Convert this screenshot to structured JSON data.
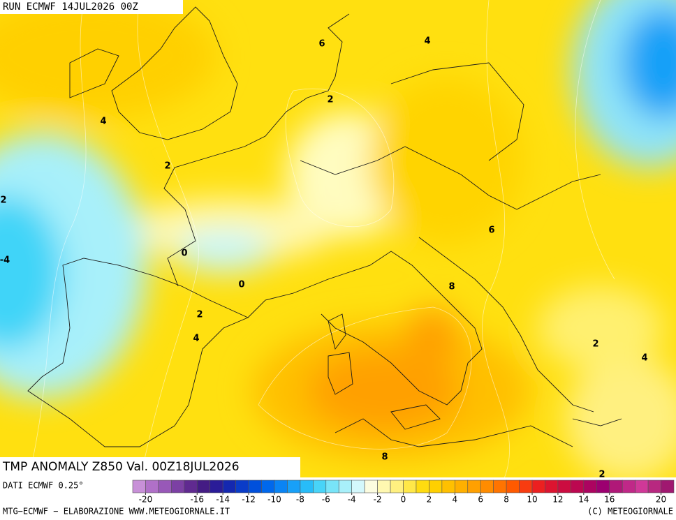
{
  "header": {
    "run": "RUN ECMWF 14JUL2026 00Z"
  },
  "map": {
    "title": "TMP ANOMALY Z850 Val. 00Z18JUL2026",
    "contour_labels": [
      6,
      4,
      2,
      4,
      2,
      2,
      -4,
      0,
      0,
      2,
      4,
      6,
      8,
      2,
      4,
      8,
      2
    ]
  },
  "legend": {
    "source": "DATI ECMWF 0.25°",
    "colors": [
      "#c890d8",
      "#b070c8",
      "#9858b8",
      "#7c40a4",
      "#602a90",
      "#441c84",
      "#2a1c98",
      "#1428b0",
      "#0a3cc8",
      "#0050dc",
      "#0068ec",
      "#0a84f4",
      "#18a0f8",
      "#28bcf8",
      "#48d4f8",
      "#78e4f8",
      "#a8f0fa",
      "#d4f8fc",
      "#fcfce0",
      "#fff8b0",
      "#fff080",
      "#ffe848",
      "#ffdc10",
      "#ffd000",
      "#ffc000",
      "#ffb000",
      "#ffa000",
      "#ff8c00",
      "#ff7400",
      "#ff5a00",
      "#f83c10",
      "#ec2020",
      "#dc1430",
      "#cc0c40",
      "#bc0850",
      "#ac0460",
      "#9c0070",
      "#b01878",
      "#c02888",
      "#d03898",
      "#b82880",
      "#a01870"
    ],
    "ticks": [
      -20,
      -16,
      -14,
      -12,
      -10,
      -8,
      -6,
      -4,
      -2,
      0,
      2,
      4,
      6,
      8,
      10,
      12,
      14,
      16,
      20
    ]
  },
  "footer": {
    "left": "MTG−ECMWF − ELABORAZIONE WWW.METEOGIORNALE.IT",
    "right": "(C) METEOGIORNALE"
  }
}
